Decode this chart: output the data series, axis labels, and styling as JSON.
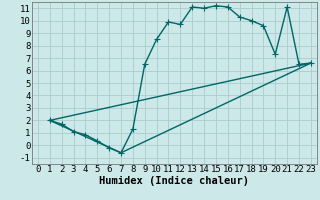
{
  "title": "",
  "xlabel": "Humidex (Indice chaleur)",
  "bg_color": "#cce8e8",
  "grid_color": "#aacccc",
  "line_color": "#006666",
  "xlim": [
    -0.5,
    23.5
  ],
  "ylim": [
    -1.5,
    11.5
  ],
  "xticks": [
    0,
    1,
    2,
    3,
    4,
    5,
    6,
    7,
    8,
    9,
    10,
    11,
    12,
    13,
    14,
    15,
    16,
    17,
    18,
    19,
    20,
    21,
    22,
    23
  ],
  "yticks": [
    -1,
    0,
    1,
    2,
    3,
    4,
    5,
    6,
    7,
    8,
    9,
    10,
    11
  ],
  "line1_x": [
    1,
    2,
    3,
    4,
    5,
    6,
    7,
    8,
    9,
    10,
    11,
    12,
    13,
    14,
    15,
    16,
    17,
    18,
    19,
    20,
    21,
    22,
    23
  ],
  "line1_y": [
    2.0,
    1.7,
    1.1,
    0.85,
    0.35,
    -0.2,
    -0.6,
    1.3,
    6.5,
    8.5,
    9.9,
    9.7,
    11.1,
    11.0,
    11.2,
    11.1,
    10.3,
    10.0,
    9.6,
    7.3,
    11.1,
    6.5,
    6.6
  ],
  "line2_x": [
    1,
    23
  ],
  "line2_y": [
    2.0,
    6.6
  ],
  "line3_x": [
    1,
    7,
    23
  ],
  "line3_y": [
    2.0,
    -0.6,
    6.6
  ],
  "marker": "+",
  "marker_size": 4,
  "linewidth": 1.0,
  "xlabel_fontsize": 7.5,
  "tick_fontsize": 6.5
}
